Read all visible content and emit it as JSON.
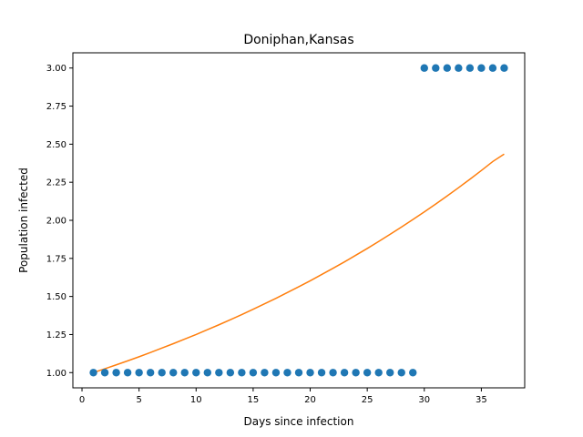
{
  "chart_data": {
    "type": "scatter",
    "title": "Doniphan,Kansas",
    "xlabel": "Days since infection",
    "ylabel": "Population infected",
    "xlim": [
      -0.8,
      38.8
    ],
    "ylim": [
      0.9,
      3.1
    ],
    "xticks": [
      0,
      5,
      10,
      15,
      20,
      25,
      30,
      35
    ],
    "yticks": [
      1.0,
      1.25,
      1.5,
      1.75,
      2.0,
      2.25,
      2.5,
      2.75,
      3.0
    ],
    "grid": false,
    "series": [
      {
        "kind": "scatter",
        "color": "#1f77b4",
        "x": [
          1,
          2,
          3,
          4,
          5,
          6,
          7,
          8,
          9,
          10,
          11,
          12,
          13,
          14,
          15,
          16,
          17,
          18,
          19,
          20,
          21,
          22,
          23,
          24,
          25,
          26,
          27,
          28,
          29,
          30,
          31,
          32,
          33,
          34,
          35,
          36,
          37
        ],
        "y": [
          1,
          1,
          1,
          1,
          1,
          1,
          1,
          1,
          1,
          1,
          1,
          1,
          1,
          1,
          1,
          1,
          1,
          1,
          1,
          1,
          1,
          1,
          1,
          1,
          1,
          1,
          1,
          1,
          1,
          3,
          3,
          3,
          3,
          3,
          3,
          3,
          3
        ]
      },
      {
        "kind": "line",
        "color": "#ff7f0e",
        "x": [
          1,
          2,
          3,
          4,
          5,
          6,
          7,
          8,
          9,
          10,
          11,
          12,
          13,
          14,
          15,
          16,
          17,
          18,
          19,
          20,
          21,
          22,
          23,
          24,
          25,
          26,
          27,
          28,
          29,
          30,
          31,
          32,
          33,
          34,
          35,
          36,
          37
        ],
        "y": [
          1.0,
          1.025,
          1.051,
          1.077,
          1.104,
          1.132,
          1.161,
          1.19,
          1.22,
          1.25,
          1.282,
          1.314,
          1.347,
          1.381,
          1.416,
          1.452,
          1.488,
          1.526,
          1.564,
          1.603,
          1.644,
          1.685,
          1.727,
          1.771,
          1.815,
          1.861,
          1.908,
          1.956,
          2.005,
          2.055,
          2.107,
          2.16,
          2.214,
          2.27,
          2.327,
          2.386,
          2.435
        ]
      }
    ]
  }
}
